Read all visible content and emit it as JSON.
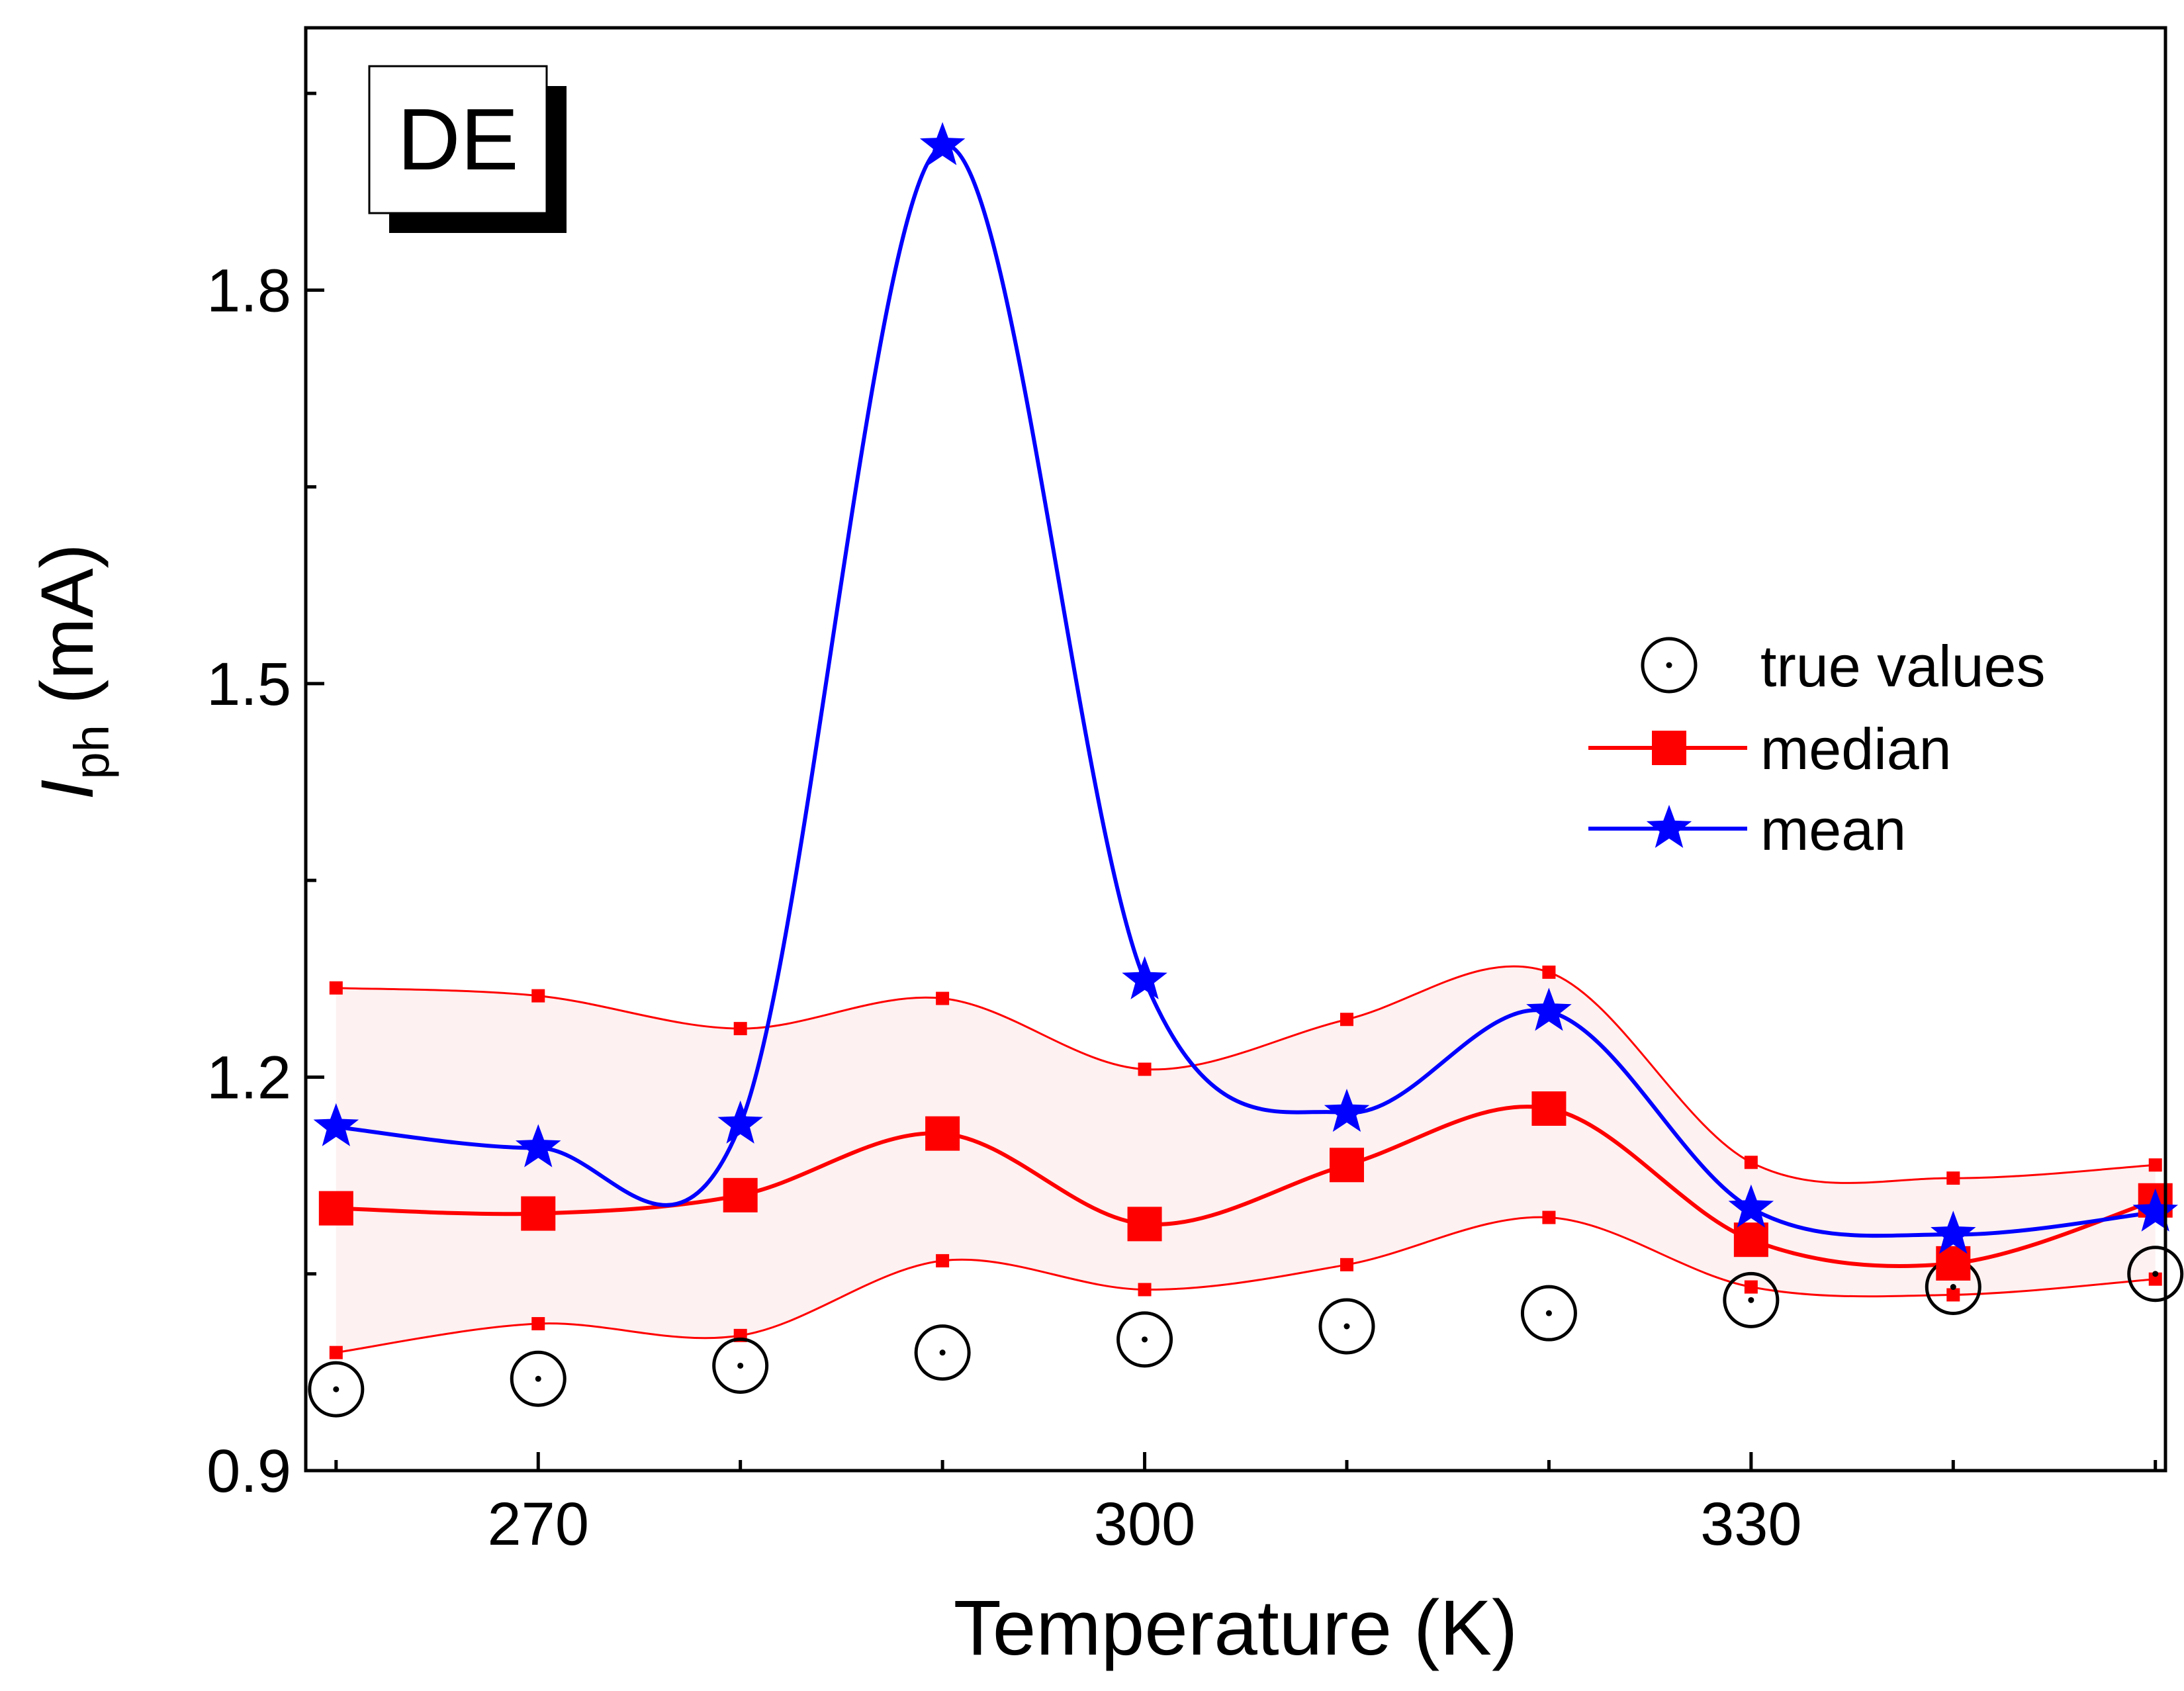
{
  "chart_data": {
    "type": "line",
    "panel_label": "DE",
    "xlabel": "Temperature (K)",
    "ylabel": {
      "symbol": "I",
      "subscript": "ph",
      "unit": "(mA)"
    },
    "xlim": [
      258.5,
      350.5
    ],
    "ylim": [
      0.9,
      2.0
    ],
    "x_ticks": [
      270,
      300,
      330
    ],
    "x_minor_ticks": [
      260,
      280,
      290,
      310,
      320,
      340,
      350
    ],
    "y_ticks": [
      0.9,
      1.2,
      1.5,
      1.8
    ],
    "y_tick_labels": [
      "0.9",
      "1.2",
      "1.5",
      "1.8"
    ],
    "y_minor_ticks": [
      1.05,
      1.35,
      1.65,
      1.95
    ],
    "x": [
      260,
      270,
      280,
      290,
      300,
      310,
      320,
      330,
      340,
      350
    ],
    "series": [
      {
        "name": "true values",
        "marker": "circle-dot",
        "color": "#000000",
        "values": [
          0.962,
          0.97,
          0.98,
          0.99,
          1.0,
          1.01,
          1.02,
          1.03,
          1.04,
          1.05
        ]
      },
      {
        "name": "median",
        "marker": "square",
        "color": "#ff0000",
        "values": [
          1.1,
          1.096,
          1.11,
          1.157,
          1.088,
          1.133,
          1.176,
          1.076,
          1.058,
          1.106
        ]
      },
      {
        "name": "mean",
        "marker": "star",
        "color": "#0000ff",
        "values": [
          1.162,
          1.146,
          1.164,
          1.91,
          1.274,
          1.173,
          1.25,
          1.1,
          1.08,
          1.097
        ]
      }
    ],
    "band": {
      "color": "#ff0000",
      "fill": "#fdf1f1",
      "upper": [
        1.268,
        1.262,
        1.237,
        1.26,
        1.206,
        1.244,
        1.28,
        1.135,
        1.123,
        1.133
      ],
      "lower": [
        0.99,
        1.012,
        1.003,
        1.06,
        1.038,
        1.057,
        1.093,
        1.04,
        1.034,
        1.046
      ]
    },
    "legend_position": "right"
  }
}
